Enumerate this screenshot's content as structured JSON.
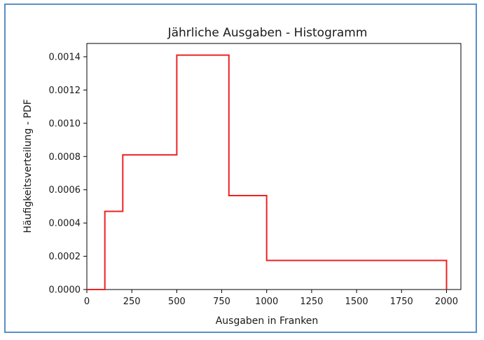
{
  "chart_data": {
    "type": "line",
    "style": "step histogram (pdf)",
    "title": "Jährliche Ausgaben - Histogramm",
    "xlabel": "Ausgaben in Franken",
    "ylabel": "Häufigkeitsverteilung - PDF",
    "xlim": [
      0,
      2080
    ],
    "ylim": [
      0,
      0.00148
    ],
    "xticks": [
      0,
      250,
      500,
      750,
      1000,
      1250,
      1500,
      1750,
      2000
    ],
    "xtick_labels": [
      "0",
      "250",
      "500",
      "750",
      "1000",
      "1250",
      "1500",
      "1750",
      "2000"
    ],
    "yticks": [
      0,
      0.0002,
      0.0004,
      0.0006,
      0.0008,
      0.001,
      0.0012,
      0.0014
    ],
    "ytick_labels": [
      "0.0000",
      "0.0002",
      "0.0004",
      "0.0006",
      "0.0008",
      "0.0010",
      "0.0012",
      "0.0014"
    ],
    "grid": false,
    "legend": "none",
    "line_color": "#ee2222",
    "series": [
      {
        "x": [
          0,
          100,
          100,
          200,
          200,
          500,
          500,
          790,
          790,
          1000,
          1000,
          2000,
          2000
        ],
        "y": [
          0,
          0,
          0.00047,
          0.00047,
          0.00081,
          0.00081,
          0.00141,
          0.00141,
          0.000565,
          0.000565,
          0.000175,
          0.000175,
          0
        ]
      }
    ]
  }
}
